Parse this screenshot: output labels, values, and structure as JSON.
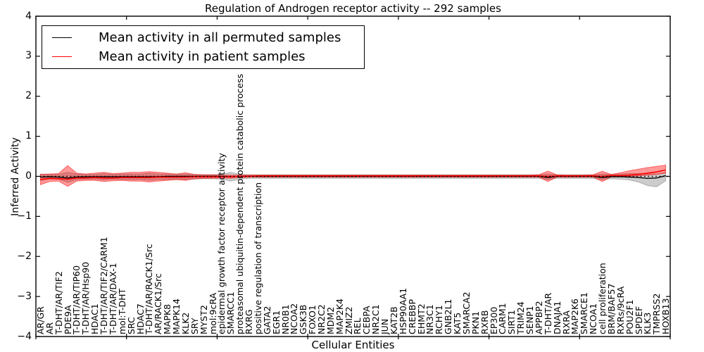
{
  "title": "Regulation of Androgen receptor activity -- 292 samples",
  "axes": {
    "ylabel": "Inferred Activity",
    "xlabel": "Cellular Entities"
  },
  "legend": {
    "position": "upper left",
    "items": [
      {
        "label": "Mean activity in all permuted samples",
        "color": "#000000"
      },
      {
        "label": "Mean activity in patient samples",
        "color": "#ff0000"
      }
    ]
  },
  "chart_data": {
    "type": "line",
    "title": "Regulation of Androgen receptor activity -- 292 samples",
    "xlabel": "Cellular Entities",
    "ylabel": "Inferred Activity",
    "ylim": [
      -4,
      4
    ],
    "yticks": [
      4,
      3,
      2,
      1,
      0,
      -1,
      -2,
      -3,
      -4
    ],
    "grid": false,
    "zero_line_style": "dotted",
    "legend_position": "upper left",
    "categories": [
      "AR/GR",
      "AR",
      "T-DHT/AR/TIF2",
      "PDE9A",
      "T-DHT/AR/TIP60",
      "T-DHT/AR/Hsp90",
      "HDAC1",
      "T-DHT/AR/TIF2/CARM1",
      "T-DHT/AR/DAX-1",
      "mol:T-DHT",
      "SRC",
      "HDAC7",
      "T-DHT/AR/RACK1/Src",
      "AR/RACK1/Src",
      "MAPK8",
      "MAPK14",
      "KLK2",
      "SRY",
      "MYST2",
      "mol:9cRA",
      "epidermal growth factor receptor activity",
      "SMARCC1",
      "proteasomal ubiquitin-dependent protein catabolic process",
      "RXRG",
      "positive regulation of transcription",
      "GATA2",
      "EGR1",
      "NR0B1",
      "NCOA2",
      "GSK3B",
      "FOXO1",
      "NR2C2",
      "MDM2",
      "MAP2K4",
      "ZMIZ2",
      "REL",
      "CEBPA",
      "NR2C1",
      "JUN",
      "KAT2B",
      "HSP90AA1",
      "CREBBP",
      "EHMT2",
      "NR3C1",
      "RCHY1",
      "GNB2L1",
      "KAT5",
      "SMARCA2",
      "PKN1",
      "RXRB",
      "EP300",
      "CARM1",
      "SIRT1",
      "TRIM24",
      "SENP1",
      "APPBP2",
      "T-DHT/AR",
      "DNAJA1",
      "RXRA",
      "MAP2K6",
      "SMARCE1",
      "NCOA1",
      "cell proliferation",
      "BRM/BAF57",
      "RXRs/9cRA",
      "POU2F1",
      "SPDEF",
      "KLK3",
      "TMPRSS2",
      "HOXB13"
    ],
    "series": [
      {
        "name": "Mean activity in all permuted samples",
        "color": "#000000",
        "band_fill": "rgba(128,128,128,0.40)",
        "band_edge": "rgba(128,128,128,0.55)",
        "values": [
          -0.02,
          -0.01,
          -0.02,
          -0.04,
          -0.02,
          -0.01,
          -0.01,
          -0.01,
          -0.01,
          -0.01,
          -0.01,
          -0.01,
          -0.01,
          -0.01,
          0,
          0,
          0,
          0,
          0,
          0,
          0,
          -0.01,
          0,
          0,
          0,
          0,
          0,
          0,
          0,
          0,
          0,
          0,
          0,
          0,
          0,
          0,
          0,
          0,
          0,
          0,
          0,
          0,
          0,
          0,
          0,
          0,
          0,
          0,
          0,
          0,
          0,
          0,
          0,
          0,
          0,
          0,
          -0.03,
          0,
          0,
          0,
          0,
          0,
          -0.03,
          -0.01,
          -0.01,
          -0.02,
          -0.03,
          -0.05,
          -0.04,
          0.02
        ],
        "band_upper": [
          0.06,
          0.05,
          0.05,
          0.1,
          0.06,
          0.05,
          0.05,
          0.07,
          0.05,
          0.06,
          0.06,
          0.06,
          0.08,
          0.06,
          0.06,
          0.05,
          0.06,
          0.05,
          0.04,
          0.04,
          0.05,
          0.1,
          0.05,
          0.04,
          0.04,
          0.04,
          0.04,
          0.04,
          0.04,
          0.04,
          0.04,
          0.04,
          0.04,
          0.04,
          0.04,
          0.04,
          0.04,
          0.04,
          0.04,
          0.04,
          0.04,
          0.04,
          0.04,
          0.04,
          0.04,
          0.04,
          0.04,
          0.04,
          0.04,
          0.04,
          0.04,
          0.04,
          0.04,
          0.04,
          0.04,
          0.04,
          0.06,
          0.04,
          0.04,
          0.04,
          0.04,
          0.04,
          0.06,
          0.05,
          0.06,
          0.07,
          0.07,
          0.06,
          0.06,
          0.1
        ],
        "band_lower": [
          -0.1,
          -0.07,
          -0.07,
          -0.15,
          -0.08,
          -0.07,
          -0.07,
          -0.09,
          -0.07,
          -0.08,
          -0.08,
          -0.08,
          -0.1,
          -0.08,
          -0.08,
          -0.07,
          -0.08,
          -0.07,
          -0.06,
          -0.06,
          -0.07,
          -0.12,
          -0.07,
          -0.05,
          -0.05,
          -0.05,
          -0.05,
          -0.05,
          -0.05,
          -0.05,
          -0.05,
          -0.05,
          -0.05,
          -0.05,
          -0.05,
          -0.05,
          -0.05,
          -0.05,
          -0.05,
          -0.05,
          -0.05,
          -0.05,
          -0.05,
          -0.05,
          -0.05,
          -0.05,
          -0.05,
          -0.05,
          -0.05,
          -0.05,
          -0.05,
          -0.05,
          -0.05,
          -0.05,
          -0.05,
          -0.05,
          -0.08,
          -0.05,
          -0.05,
          -0.05,
          -0.05,
          -0.05,
          -0.08,
          -0.06,
          -0.07,
          -0.09,
          -0.14,
          -0.23,
          -0.26,
          -0.11
        ]
      },
      {
        "name": "Mean activity in patient samples",
        "color": "#ff0000",
        "band_fill": "rgba(255,0,0,0.40)",
        "band_edge": "rgba(255,0,0,0.50)",
        "values": [
          -0.08,
          -0.05,
          -0.06,
          -0.07,
          -0.04,
          -0.04,
          -0.03,
          -0.04,
          -0.04,
          -0.03,
          -0.03,
          -0.03,
          -0.03,
          -0.02,
          -0.02,
          -0.02,
          -0.02,
          -0.01,
          -0.01,
          -0.01,
          -0.01,
          -0.01,
          0,
          0,
          0.01,
          0.01,
          0.01,
          0.01,
          0.01,
          0.01,
          0.01,
          0.01,
          0.01,
          0.01,
          0.01,
          0.01,
          0.01,
          0.01,
          0.01,
          0.01,
          0.01,
          0.01,
          0.01,
          0.01,
          0.01,
          0.01,
          0.01,
          0.01,
          0.01,
          0.01,
          0.01,
          0.01,
          0.01,
          0.01,
          0.01,
          0.01,
          0,
          0.01,
          0.01,
          0.01,
          0.01,
          0.01,
          0,
          0.02,
          0.02,
          0.03,
          0.05,
          0.08,
          0.11,
          0.16
        ],
        "band_upper": [
          0.05,
          0.06,
          0.07,
          0.27,
          0.08,
          0.06,
          0.08,
          0.1,
          0.07,
          0.08,
          0.1,
          0.1,
          0.12,
          0.1,
          0.08,
          0.06,
          0.09,
          0.05,
          0.04,
          0.04,
          0.03,
          0.03,
          0.03,
          0.03,
          0.03,
          0.03,
          0.03,
          0.03,
          0.03,
          0.03,
          0.03,
          0.03,
          0.03,
          0.03,
          0.03,
          0.03,
          0.03,
          0.03,
          0.03,
          0.03,
          0.03,
          0.03,
          0.03,
          0.03,
          0.03,
          0.03,
          0.03,
          0.03,
          0.03,
          0.03,
          0.03,
          0.03,
          0.03,
          0.03,
          0.03,
          0.04,
          0.13,
          0.04,
          0.03,
          0.03,
          0.03,
          0.04,
          0.13,
          0.05,
          0.09,
          0.14,
          0.18,
          0.22,
          0.25,
          0.28
        ],
        "band_lower": [
          -0.21,
          -0.13,
          -0.12,
          -0.25,
          -0.12,
          -0.1,
          -0.1,
          -0.13,
          -0.11,
          -0.1,
          -0.12,
          -0.12,
          -0.14,
          -0.12,
          -0.1,
          -0.08,
          -0.1,
          -0.06,
          -0.05,
          -0.05,
          -0.04,
          -0.05,
          -0.03,
          -0.02,
          -0.02,
          -0.02,
          -0.02,
          -0.02,
          -0.02,
          -0.02,
          -0.02,
          -0.02,
          -0.02,
          -0.02,
          -0.02,
          -0.02,
          -0.02,
          -0.02,
          -0.02,
          -0.02,
          -0.02,
          -0.02,
          -0.02,
          -0.02,
          -0.02,
          -0.02,
          -0.02,
          -0.02,
          -0.02,
          -0.02,
          -0.02,
          -0.02,
          -0.02,
          -0.02,
          -0.02,
          -0.02,
          -0.13,
          -0.02,
          -0.02,
          -0.02,
          -0.02,
          -0.02,
          -0.13,
          -0.01,
          0,
          0,
          0.01,
          0.03,
          0.05,
          0.08
        ]
      }
    ]
  }
}
